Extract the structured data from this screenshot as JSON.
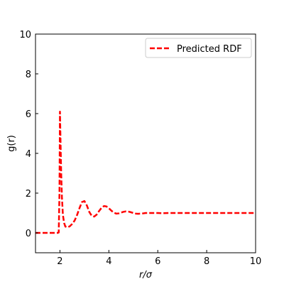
{
  "chart_data": {
    "type": "line",
    "xlabel": "r/σ",
    "ylabel": "g(r)",
    "xlim": [
      1,
      10
    ],
    "ylim": [
      -1,
      10
    ],
    "xticks": [
      2,
      4,
      6,
      8,
      10
    ],
    "yticks": [
      0,
      2,
      4,
      6,
      8,
      10
    ],
    "grid": false,
    "legend_position": "top-right",
    "series": [
      {
        "name": "Predicted RDF",
        "color": "#ff0000",
        "style": "dashed",
        "x": [
          1.0,
          1.5,
          1.9,
          1.95,
          1.98,
          2.0,
          2.02,
          2.05,
          2.08,
          2.12,
          2.17,
          2.22,
          2.3,
          2.4,
          2.5,
          2.6,
          2.7,
          2.8,
          2.9,
          3.0,
          3.1,
          3.2,
          3.3,
          3.4,
          3.5,
          3.6,
          3.7,
          3.8,
          3.9,
          4.0,
          4.1,
          4.2,
          4.3,
          4.4,
          4.5,
          4.6,
          4.7,
          4.8,
          4.9,
          5.0,
          5.1,
          5.2,
          5.3,
          5.4,
          5.5,
          5.6,
          5.8,
          6.0,
          6.2,
          6.5,
          7.0,
          7.5,
          8.0,
          9.0,
          10.0
        ],
        "y": [
          0.0,
          0.0,
          0.0,
          0.02,
          2.0,
          6.1,
          4.8,
          3.0,
          1.8,
          0.9,
          0.5,
          0.32,
          0.28,
          0.33,
          0.45,
          0.62,
          0.9,
          1.25,
          1.55,
          1.6,
          1.38,
          1.05,
          0.86,
          0.82,
          0.92,
          1.1,
          1.26,
          1.35,
          1.33,
          1.24,
          1.12,
          1.02,
          0.97,
          0.98,
          1.02,
          1.06,
          1.08,
          1.07,
          1.04,
          1.0,
          0.97,
          0.96,
          0.97,
          0.98,
          1.0,
          1.0,
          1.0,
          1.0,
          0.99,
          1.0,
          1.0,
          1.0,
          1.0,
          1.0,
          1.0
        ]
      }
    ]
  }
}
